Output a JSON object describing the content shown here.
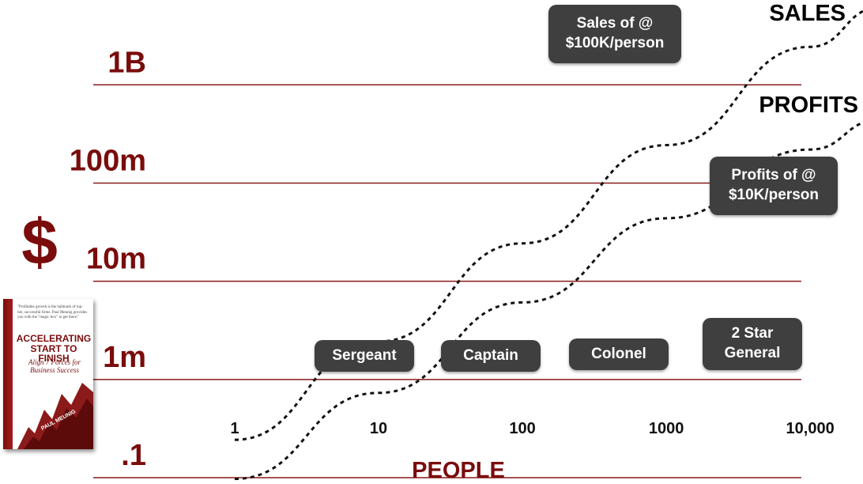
{
  "colors": {
    "axis_maroon": "#7a0c0c",
    "gridline": "#8b1a1a",
    "callout_bg": "#3f3f3f"
  },
  "y_axis": {
    "symbol": "$"
  },
  "x_axis": {
    "label": "PEOPLE"
  },
  "callouts": {
    "sales": "Sales of @\n$100K/person",
    "profits": "Profits of @\n$10K/person",
    "ranks": [
      "Sergeant",
      "Captain",
      "Colonel",
      "2 Star\nGeneral"
    ]
  },
  "book": {
    "blurb": "\"Profitable growth is the hallmark of top-tier, successful firms. Paul Meunig provides you with the \"magic box\" to get there.\"",
    "title": "ACCELERATING\nSTART TO FINISH",
    "subtitle": "Align 7 Forces for\nBusiness Success",
    "author": "PAUL MEUNIG"
  },
  "chart_data": {
    "type": "line",
    "x_scale": "log",
    "y_scale": "log",
    "x_ticks": [
      1,
      10,
      100,
      1000,
      10000
    ],
    "x_tick_labels": [
      "1",
      "10",
      "100",
      "1000",
      "10,000"
    ],
    "y_ticks": [
      0.1,
      1,
      10,
      100,
      1000
    ],
    "y_tick_labels": [
      ".1",
      "1m",
      "10m",
      "100m",
      "1B"
    ],
    "y_unit": "millions of $",
    "xlim": [
      1,
      30000
    ],
    "ylim": [
      0.03,
      3000
    ],
    "gridlines": "horizontal",
    "series": [
      {
        "name": "SALES",
        "style": "dotted",
        "x": [
          1,
          10,
          100,
          1000,
          10000,
          30000
        ],
        "y": [
          0.1,
          1,
          10,
          100,
          1000,
          2500
        ]
      },
      {
        "name": "PROFITS",
        "style": "dotted",
        "x": [
          1,
          10,
          100,
          1000,
          10000,
          30000
        ],
        "y": [
          0.04,
          0.3,
          2.5,
          18,
          90,
          180
        ]
      }
    ]
  }
}
